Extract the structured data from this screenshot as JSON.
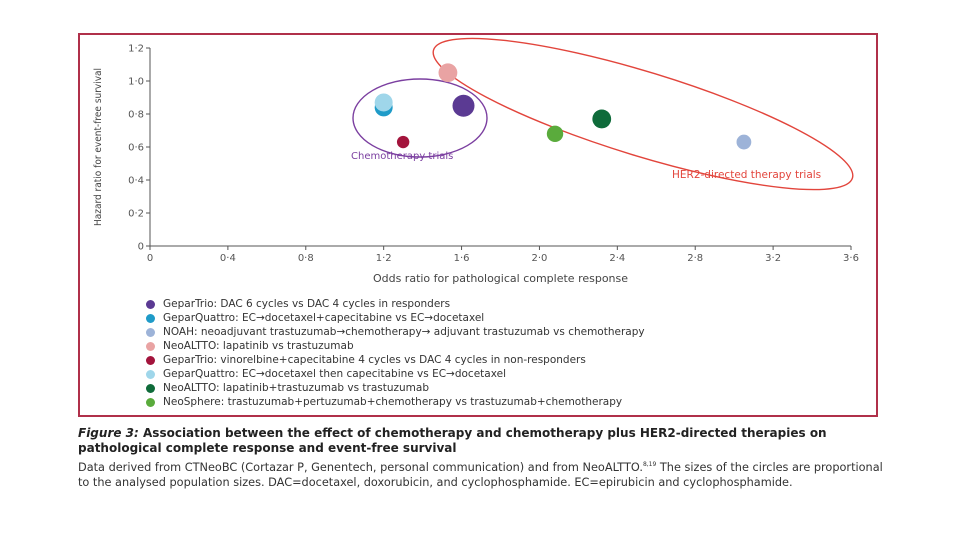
{
  "chart_data": {
    "type": "scatter",
    "xlabel": "Odds ratio for pathological complete response",
    "ylabel": "Hazard ratio for event-free survival",
    "xlim": [
      0,
      3.6
    ],
    "ylim": [
      0,
      1.2
    ],
    "x_ticks": [
      "0",
      "0·4",
      "0·8",
      "1·2",
      "1·6",
      "2·0",
      "2·4",
      "2·8",
      "3·2",
      "3·6"
    ],
    "y_ticks": [
      "0",
      "0·2",
      "0·4",
      "0·6",
      "0·8",
      "1·0",
      "1·2"
    ],
    "series": [
      {
        "name": "GeparTrio: DAC 6 cycles vs DAC 4 cycles in responders",
        "color": "#5b3a93",
        "x": 1.61,
        "y": 0.85,
        "size": 1.0
      },
      {
        "name": "GeparQuattro: EC→docetaxel+capecitabine vs EC→docetaxel",
        "color": "#1f9bc8",
        "x": 1.2,
        "y": 0.84,
        "size": 0.75
      },
      {
        "name": "NOAH: neoadjuvant trastuzumab→chemotherapy→ adjuvant trastuzumab vs chemotherapy",
        "color": "#9db3d8",
        "x": 3.05,
        "y": 0.63,
        "size": 0.55
      },
      {
        "name": "NeoALTTO: lapatinib vs trastuzumab",
        "color": "#e9a3a3",
        "x": 1.53,
        "y": 1.05,
        "size": 0.8
      },
      {
        "name": "GeparTrio: vinorelbine+capecitabine 4 cycles vs DAC 4 cycles in non-responders",
        "color": "#a3143c",
        "x": 1.3,
        "y": 0.63,
        "size": 0.4
      },
      {
        "name": "GeparQuattro: EC→docetaxel then capecitabine vs EC→docetaxel",
        "color": "#9fd6ea",
        "x": 1.2,
        "y": 0.87,
        "size": 0.75
      },
      {
        "name": "NeoALTTO: lapatinib+trastuzumab vs trastuzumab",
        "color": "#0f6b3a",
        "x": 2.32,
        "y": 0.77,
        "size": 0.8
      },
      {
        "name": "NeoSphere: trastuzumab+pertuzumab+chemotherapy vs trastuzumab+chemotherapy",
        "color": "#5aab3c",
        "x": 2.08,
        "y": 0.68,
        "size": 0.65
      }
    ],
    "annotations": [
      {
        "text": "Chemotherapy trials",
        "color": "#7b3fa0"
      },
      {
        "text": "HER2-directed therapy trials",
        "color": "#e2453c"
      }
    ],
    "grid": false,
    "legend_position": "below"
  },
  "caption": {
    "figure_label": "Figure 3:",
    "title": "Association between the effect of chemotherapy and chemotherapy plus HER2-directed therapies on pathological complete response and event-free survival",
    "body_1": "Data derived from CTNeoBC (Cortazar P, Genentech, personal communication) and from NeoALTTO.",
    "refs": "8,19",
    "body_2": "The sizes of the circles are proportional to the analysed population sizes. DAC=docetaxel, doxorubicin, and cyclophosphamide. EC=epirubicin and cyclophosphamide."
  },
  "colors": {
    "frame": "#b0304a",
    "axis": "#555555"
  }
}
